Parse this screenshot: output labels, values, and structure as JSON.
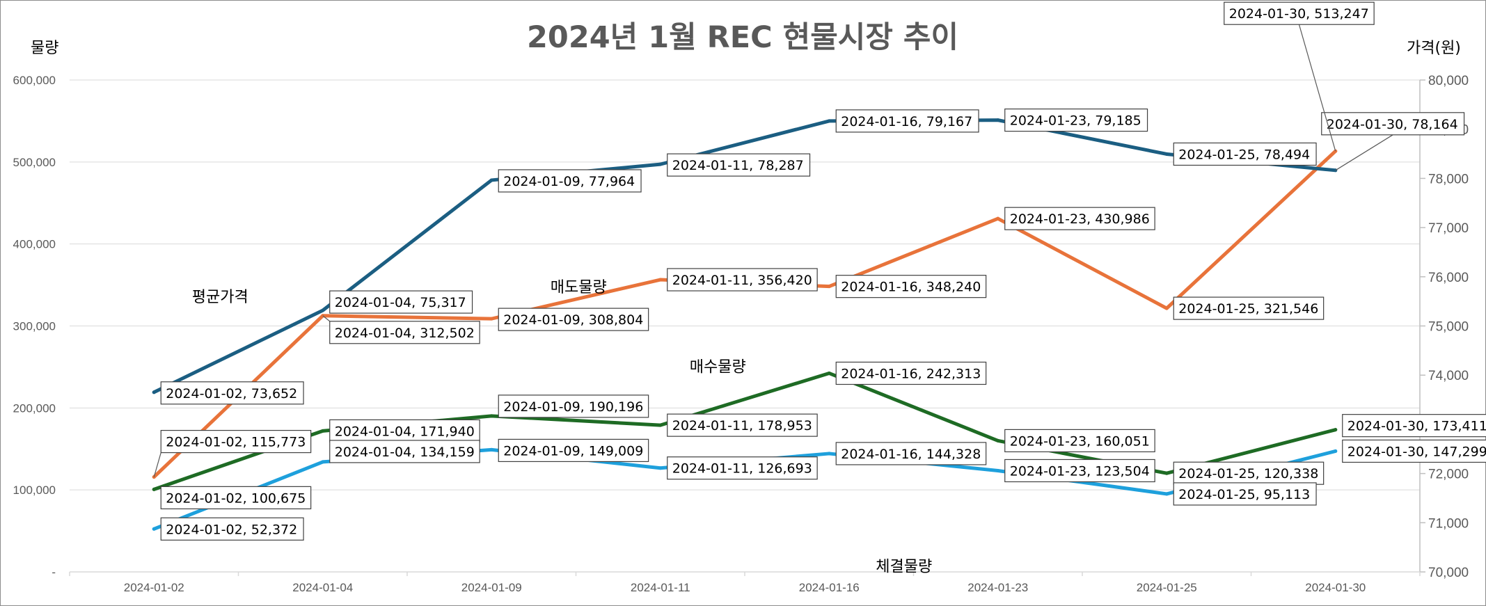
{
  "chart_data": {
    "type": "line",
    "title": "2024년 1월 REC 현물시장 추이",
    "y_left_label": "물량",
    "y_right_label": "가격(원)",
    "categories": [
      "2024-01-02",
      "2024-01-04",
      "2024-01-09",
      "2024-01-11",
      "2024-01-16",
      "2024-01-23",
      "2024-01-25",
      "2024-01-30"
    ],
    "y_left": {
      "min": 0,
      "max": 600000,
      "step": 100000,
      "ticks": [
        "-",
        "100,000",
        "200,000",
        "300,000",
        "400,000",
        "500,000",
        "600,000"
      ]
    },
    "y_right": {
      "min": 70000,
      "max": 80000,
      "step": 1000,
      "ticks": [
        "70,000",
        "71,000",
        "72,000",
        "73,000",
        "74,000",
        "75,000",
        "76,000",
        "77,000",
        "78,000",
        "79,000",
        "80,000"
      ]
    },
    "grid": true,
    "series": [
      {
        "name": "평균가격",
        "axis": "right",
        "color": "#1b5e82",
        "values": [
          73652,
          75317,
          77964,
          78287,
          79167,
          79185,
          78494,
          78164
        ],
        "labels": [
          "2024-01-02, 73,652",
          "2024-01-04, 75,317",
          "2024-01-09, 77,964",
          "2024-01-11, 78,287",
          "2024-01-16, 79,167",
          "2024-01-23, 79,185",
          "2024-01-25, 78,494",
          "2024-01-30, 78,164"
        ]
      },
      {
        "name": "매도물량",
        "axis": "left",
        "color": "#e8733a",
        "values": [
          115773,
          312502,
          308804,
          356420,
          348240,
          430986,
          321546,
          513247
        ],
        "labels": [
          "2024-01-02, 115,773",
          "2024-01-04, 312,502",
          "2024-01-09, 308,804",
          "2024-01-11, 356,420",
          "2024-01-16, 348,240",
          "2024-01-23, 430,986",
          "2024-01-25, 321,546",
          "2024-01-30, 513,247"
        ]
      },
      {
        "name": "매수물량",
        "axis": "left",
        "color": "#1e6b24",
        "values": [
          100675,
          171940,
          190196,
          178953,
          242313,
          160051,
          120338,
          173411
        ],
        "labels": [
          "2024-01-02, 100,675",
          "2024-01-04, 171,940",
          "2024-01-09, 190,196",
          "2024-01-11, 178,953",
          "2024-01-16, 242,313",
          "2024-01-23, 160,051",
          "2024-01-25, 120,338",
          "2024-01-30, 173,411"
        ]
      },
      {
        "name": "체결물량",
        "axis": "left",
        "color": "#1ea0dc",
        "values": [
          52372,
          134159,
          149009,
          126693,
          144328,
          123504,
          95113,
          147299
        ],
        "labels": [
          "2024-01-02, 52,372",
          "2024-01-04, 134,159",
          "2024-01-09, 149,009",
          "2024-01-11, 126,693",
          "2024-01-16, 144,328",
          "2024-01-23, 123,504",
          "2024-01-25, 95,113",
          "2024-01-30, 147,299"
        ]
      }
    ]
  }
}
